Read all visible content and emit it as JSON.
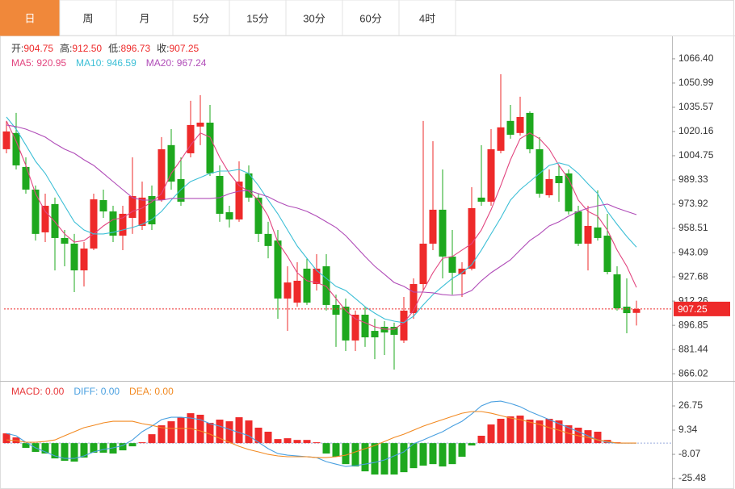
{
  "tabs": [
    "日",
    "周",
    "月",
    "5分",
    "15分",
    "30分",
    "60分",
    "4时"
  ],
  "active_tab": 0,
  "chart_data": [
    {
      "type": "candlestick",
      "info": [
        {
          "label": "开:",
          "value": "904.75"
        },
        {
          "label": "高:",
          "value": "912.50"
        },
        {
          "label": "低:",
          "value": "896.73"
        },
        {
          "label": "收:",
          "value": "907.25"
        }
      ],
      "up_color": "#ee2a2a",
      "down_color": "#1ea81e",
      "open": [
        1008.9,
        1019.2,
        997.6,
        983.2,
        956.0,
        974.0,
        952.4,
        948.8,
        931.8,
        945.7,
        976.5,
        969.3,
        953.9,
        965.2,
        960.1,
        979.1,
        976.5,
        1011.5,
        989.9,
        1006.3,
        1023.3,
        1025.8,
        991.9,
        968.8,
        964.2,
        993.5,
        978.1,
        955.0,
        950.8,
        913.9,
        911.3,
        932.9,
        923.1,
        934.4,
        909.8,
        908.7,
        887.2,
        903.6,
        893.3,
        895.9,
        895.9,
        887.2,
        904.6,
        923.1,
        948.8,
        970.4,
        940.6,
        929.3,
        932.9,
        978.1,
        975.5,
        1007.9,
        1026.9,
        1019.2,
        1032.0,
        1008.9,
        979.6,
        991.9,
        993.5,
        969.3,
        948.8,
        959.1,
        953.9,
        929.3,
        908.7,
        904.75
      ],
      "high": [
        1026.9,
        1032.0,
        1003.7,
        985.8,
        980.6,
        978.1,
        957.5,
        955.0,
        949.8,
        980.6,
        983.2,
        972.9,
        972.9,
        1003.7,
        988.3,
        985.8,
        1016.6,
        1021.7,
        1003.7,
        1039.7,
        1043.3,
        1037.1,
        998.6,
        972.9,
        1001.2,
        998.6,
        980.6,
        962.7,
        957.5,
        934.4,
        937.0,
        939.5,
        942.1,
        942.1,
        916.4,
        913.9,
        906.2,
        908.7,
        901.0,
        899.5,
        898.5,
        914.9,
        926.7,
        1026.9,
        1014.0,
        996.0,
        957.5,
        937.0,
        984.7,
        1011.5,
        1021.7,
        1056.6,
        1037.1,
        1042.3,
        1033.0,
        1016.6,
        996.0,
        998.6,
        996.0,
        972.9,
        972.9,
        982.7,
        967.8,
        934.4,
        926.7,
        912.5
      ],
      "low": [
        1006.3,
        996.0,
        980.6,
        950.8,
        949.8,
        931.8,
        934.4,
        918.0,
        921.6,
        944.7,
        965.2,
        949.8,
        944.7,
        955.0,
        957.5,
        957.5,
        975.5,
        983.2,
        972.9,
        1003.7,
        1011.5,
        991.9,
        962.7,
        959.1,
        962.7,
        975.5,
        949.8,
        939.5,
        901.0,
        893.3,
        908.7,
        909.8,
        919.0,
        906.2,
        883.1,
        880.5,
        880.5,
        883.1,
        875.3,
        877.9,
        868.7,
        885.6,
        901.0,
        919.0,
        944.7,
        926.7,
        916.4,
        914.9,
        931.8,
        972.9,
        972.9,
        1006.3,
        1015.6,
        1017.6,
        1006.3,
        978.1,
        978.1,
        975.5,
        967.3,
        947.3,
        931.8,
        950.8,
        929.3,
        906.2,
        891.8,
        896.73
      ],
      "close": [
        1020.2,
        998.6,
        983.2,
        955.0,
        972.9,
        952.4,
        948.8,
        931.8,
        945.7,
        977.0,
        969.3,
        953.9,
        967.8,
        979.1,
        978.1,
        961.1,
        1008.9,
        988.3,
        975.5,
        1024.3,
        1025.8,
        993.5,
        967.8,
        964.2,
        988.3,
        978.1,
        955.0,
        947.3,
        913.9,
        924.1,
        925.2,
        911.3,
        932.9,
        909.8,
        903.6,
        887.2,
        903.6,
        889.2,
        889.2,
        892.3,
        890.8,
        906.2,
        923.1,
        948.8,
        970.4,
        940.6,
        930.3,
        932.9,
        971.4,
        975.5,
        1008.9,
        1022.8,
        1018.1,
        1029.4,
        1008.9,
        980.6,
        989.9,
        987.3,
        969.3,
        948.8,
        960.1,
        952.4,
        930.8,
        907.7,
        904.6,
        907.25
      ],
      "overlays": [
        {
          "label": "MA5: 920.95",
          "color": "#e2457f",
          "values": [
            1026.9,
            1014.0,
            998.6,
            980.6,
            969.3,
            962.7,
            955.0,
            949.8,
            950.8,
            955.0,
            960.1,
            964.2,
            965.2,
            969.3,
            971.4,
            975.5,
            980.6,
            993.5,
            1002.2,
            1011.5,
            1019.2,
            1016.6,
            1003.7,
            993.5,
            985.8,
            982.2,
            976.5,
            966.3,
            949.8,
            940.6,
            930.3,
            925.2,
            924.1,
            921.6,
            913.9,
            906.2,
            901.0,
            898.5,
            895.9,
            894.4,
            894.4,
            898.5,
            906.2,
            919.0,
            930.3,
            939.5,
            940.6,
            944.7,
            948.8,
            957.5,
            970.4,
            985.8,
            1002.2,
            1015.6,
            1019.2,
            1015.6,
            1008.9,
            998.6,
            989.9,
            976.5,
            969.3,
            966.3,
            957.5,
            944.7,
            934.4,
            920.95
          ]
        },
        {
          "label": "MA10: 946.59",
          "color": "#3cbfd6",
          "values": [
            1029.4,
            1021.7,
            1011.5,
            1001.2,
            993.5,
            983.2,
            972.9,
            962.7,
            957.5,
            955.0,
            955.0,
            956.0,
            957.5,
            959.1,
            961.1,
            964.2,
            969.3,
            976.5,
            983.2,
            988.3,
            990.9,
            993.5,
            995.0,
            995.0,
            996.0,
            993.5,
            985.8,
            976.5,
            967.8,
            957.5,
            947.3,
            939.5,
            931.8,
            926.7,
            921.6,
            919.0,
            913.9,
            908.7,
            904.6,
            901.0,
            899.5,
            898.5,
            902.6,
            909.8,
            916.4,
            921.6,
            926.7,
            930.3,
            935.4,
            944.7,
            955.0,
            965.2,
            976.5,
            983.2,
            988.3,
            993.5,
            998.6,
            1000.2,
            998.6,
            993.5,
            986.8,
            980.6,
            969.3,
            961.1,
            953.4,
            946.59
          ]
        },
        {
          "label": "MA20: 967.24",
          "color": "#b04cb8",
          "values": [
            1024.3,
            1023.3,
            1021.7,
            1019.2,
            1016.6,
            1012.5,
            1008.9,
            1006.3,
            1002.2,
            998.6,
            993.5,
            988.3,
            983.2,
            978.1,
            976.5,
            976.5,
            976.5,
            977.6,
            977.6,
            977.6,
            977.6,
            977.6,
            978.1,
            980.6,
            982.2,
            982.7,
            980.6,
            978.6,
            975.5,
            972.9,
            971.4,
            969.3,
            966.3,
            962.7,
            959.1,
            953.9,
            947.3,
            940.6,
            934.4,
            929.3,
            924.1,
            921.6,
            918.0,
            918.0,
            917.5,
            916.4,
            915.9,
            916.4,
            919.0,
            925.2,
            930.3,
            934.4,
            938.5,
            944.7,
            950.8,
            955.0,
            960.1,
            962.7,
            966.3,
            969.3,
            971.4,
            972.9,
            974.0,
            971.4,
            969.3,
            967.24
          ]
        }
      ],
      "last_price": {
        "value": 907.25,
        "label": "907.25",
        "color": "#ee2a2a"
      },
      "ylim": [
        861.5,
        1079.7
      ],
      "yticks": [
        {
          "value": 1066.4,
          "label": "1066.40"
        },
        1050.99,
        1035.57,
        1020.16,
        1004.75,
        989.33,
        973.92,
        958.51,
        943.09,
        927.68,
        912.26,
        896.85,
        881.44,
        866.02
      ]
    },
    {
      "type": "macd",
      "up_color": "#ee2a2a",
      "down_color": "#1ea81e",
      "series": [
        {
          "label": "MACD: 0.00",
          "color": "#e8383a",
          "kind": "bar",
          "values": [
            7.0,
            4.1,
            -3.4,
            -6.3,
            -7.5,
            -11.0,
            -12.7,
            -13.3,
            -10.4,
            -6.9,
            -6.9,
            -7.5,
            -5.2,
            -2.3,
            0.6,
            6.4,
            12.8,
            15.7,
            18.6,
            21.5,
            20.4,
            14.6,
            16.9,
            15.7,
            18.6,
            16.3,
            11.1,
            8.2,
            2.9,
            3.5,
            2.3,
            2.3,
            0.6,
            -7.5,
            -9.8,
            -15.1,
            -16.8,
            -20.3,
            -22.6,
            -22.6,
            -22.6,
            -20.9,
            -18.0,
            -16.2,
            -15.1,
            -16.8,
            -15.1,
            -9.8,
            -1.7,
            5.3,
            13.4,
            17.5,
            19.2,
            19.8,
            16.9,
            16.3,
            17.5,
            16.3,
            12.8,
            11.1,
            9.3,
            8.2,
            2.3,
            0.6,
            0,
            0
          ]
        },
        {
          "label": "DIFF: 0.00",
          "color": "#4aa0e0",
          "kind": "line",
          "values": [
            7.0,
            5.3,
            0.6,
            -3.4,
            -6.3,
            -9.2,
            -11.0,
            -11.0,
            -9.2,
            -6.3,
            -4.6,
            -3.4,
            -1.7,
            2.3,
            8.2,
            12.2,
            16.9,
            18.6,
            18.6,
            18.0,
            16.9,
            14.0,
            12.2,
            9.9,
            7.6,
            5.3,
            0.6,
            -4.0,
            -7.5,
            -8.7,
            -9.2,
            -9.8,
            -10.4,
            -13.3,
            -15.1,
            -16.8,
            -16.2,
            -15.1,
            -13.9,
            -12.1,
            -9.2,
            -6.3,
            -0.5,
            2.3,
            5.3,
            8.2,
            12.2,
            15.7,
            20.9,
            26.8,
            29.6,
            30.2,
            28.5,
            26.2,
            22.7,
            19.8,
            16.9,
            14.0,
            11.1,
            8.2,
            5.3,
            2.3,
            0.6,
            0,
            0,
            0
          ]
        },
        {
          "label": "DEA: 0.00",
          "color": "#f28a22",
          "kind": "line",
          "values": [
            2.3,
            1.8,
            0.6,
            0.6,
            1.2,
            2.3,
            5.3,
            8.2,
            11.1,
            12.8,
            14.6,
            15.7,
            15.7,
            15.7,
            14.0,
            12.8,
            11.1,
            10.5,
            10.5,
            10.5,
            8.8,
            6.4,
            3.5,
            0.6,
            -2.3,
            -4.6,
            -6.3,
            -8.1,
            -9.2,
            -9.8,
            -9.8,
            -9.8,
            -10.4,
            -10.4,
            -9.8,
            -8.7,
            -6.3,
            -4.0,
            -1.7,
            1.2,
            4.1,
            6.4,
            9.3,
            12.2,
            14.6,
            16.9,
            19.2,
            21.5,
            22.7,
            22.7,
            21.5,
            19.8,
            18.0,
            16.9,
            15.1,
            13.4,
            11.1,
            9.3,
            7.0,
            5.3,
            4.1,
            2.3,
            1.2,
            0,
            0,
            0
          ]
        }
      ],
      "ylim": [
        -33.0,
        43.6
      ],
      "yticks": [
        26.75,
        9.34,
        -8.07,
        -25.48
      ]
    }
  ]
}
